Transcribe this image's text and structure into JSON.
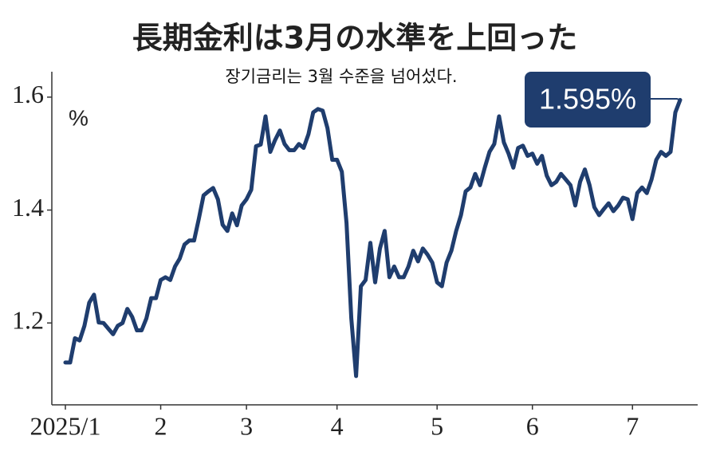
{
  "chart_data": {
    "type": "line",
    "title": "長期金利は3月の水準を上回った",
    "subtitle": "장기금리는 3월 수준을 넘어섰다.",
    "y_label": "%",
    "color": "#1f3d6e",
    "categories": [
      "2025/1",
      null,
      null,
      null,
      null,
      null,
      null,
      null,
      null,
      null,
      null,
      null,
      null,
      null,
      null,
      null,
      null,
      null,
      null,
      null,
      "2",
      null,
      null,
      null,
      null,
      null,
      null,
      null,
      null,
      null,
      null,
      null,
      null,
      null,
      null,
      null,
      null,
      null,
      "3",
      null,
      null,
      null,
      null,
      null,
      null,
      null,
      null,
      null,
      null,
      null,
      null,
      null,
      null,
      null,
      null,
      null,
      null,
      "4",
      null,
      null,
      null,
      null,
      null,
      null,
      null,
      null,
      null,
      null,
      null,
      null,
      null,
      null,
      null,
      null,
      null,
      null,
      null,
      null,
      "5",
      null,
      null,
      null,
      null,
      null,
      null,
      null,
      null,
      null,
      null,
      null,
      null,
      null,
      null,
      null,
      null,
      null,
      null,
      null,
      "6",
      null,
      null,
      null,
      null,
      null,
      null,
      null,
      null,
      null,
      null,
      null,
      null,
      null,
      null,
      null,
      null,
      null,
      null,
      null,
      null,
      "7",
      null,
      null,
      null,
      null,
      null,
      null,
      null,
      null,
      null,
      null
    ],
    "values": [
      1.13,
      1.13,
      1.173,
      1.169,
      1.195,
      1.236,
      1.25,
      1.201,
      1.2,
      1.19,
      1.18,
      1.195,
      1.2,
      1.225,
      1.211,
      1.187,
      1.187,
      1.208,
      1.244,
      1.244,
      1.276,
      1.281,
      1.276,
      1.3,
      1.314,
      1.339,
      1.346,
      1.346,
      1.384,
      1.426,
      1.433,
      1.439,
      1.419,
      1.374,
      1.363,
      1.394,
      1.373,
      1.408,
      1.419,
      1.436,
      1.513,
      1.516,
      1.566,
      1.503,
      1.524,
      1.541,
      1.517,
      1.506,
      1.506,
      1.517,
      1.51,
      1.534,
      1.573,
      1.579,
      1.576,
      1.545,
      1.489,
      1.489,
      1.468,
      1.377,
      1.208,
      1.106,
      1.265,
      1.276,
      1.342,
      1.272,
      1.332,
      1.363,
      1.281,
      1.3,
      1.281,
      1.281,
      1.3,
      1.328,
      1.309,
      1.332,
      1.321,
      1.307,
      1.272,
      1.265,
      1.307,
      1.328,
      1.363,
      1.391,
      1.433,
      1.44,
      1.464,
      1.444,
      1.475,
      1.503,
      1.517,
      1.566,
      1.52,
      1.5,
      1.475,
      1.51,
      1.514,
      1.496,
      1.5,
      1.482,
      1.496,
      1.461,
      1.444,
      1.45,
      1.464,
      1.454,
      1.444,
      1.408,
      1.45,
      1.472,
      1.444,
      1.405,
      1.391,
      1.402,
      1.412,
      1.398,
      1.408,
      1.422,
      1.419,
      1.384,
      1.43,
      1.44,
      1.43,
      1.454,
      1.489,
      1.503,
      1.496,
      1.503,
      1.573,
      1.595
    ],
    "value_labels": [
      null,
      null,
      null,
      null,
      null,
      null,
      null,
      null,
      null,
      null,
      null,
      null,
      null,
      null,
      null,
      null,
      null,
      null,
      null,
      null,
      null,
      null,
      null,
      null,
      null,
      null,
      null,
      null,
      null,
      null,
      null,
      null,
      null,
      null,
      null,
      null,
      null,
      null,
      null,
      null,
      null,
      null,
      null,
      null,
      null,
      null,
      null,
      null,
      null,
      null,
      null,
      null,
      null,
      null,
      null,
      null,
      null,
      null,
      null,
      null,
      null,
      null,
      null,
      null,
      null,
      null,
      null,
      null,
      null,
      null,
      null,
      null,
      null,
      null,
      null,
      null,
      null,
      null,
      null,
      null,
      null,
      null,
      null,
      null,
      null,
      null,
      null,
      null,
      null,
      null,
      null,
      null,
      null,
      null,
      null,
      null,
      null,
      null,
      null,
      null,
      null,
      null,
      null,
      null,
      null,
      null,
      null,
      null,
      null,
      null,
      null,
      null,
      null,
      null,
      null,
      null,
      null,
      null,
      null,
      null,
      null,
      null,
      null,
      null,
      null,
      null,
      null,
      null,
      null,
      "1.595%"
    ],
    "ylim": [
      1.055,
      1.645
    ],
    "yticks": [
      1.2,
      1.4,
      1.6
    ],
    "grid": false
  }
}
